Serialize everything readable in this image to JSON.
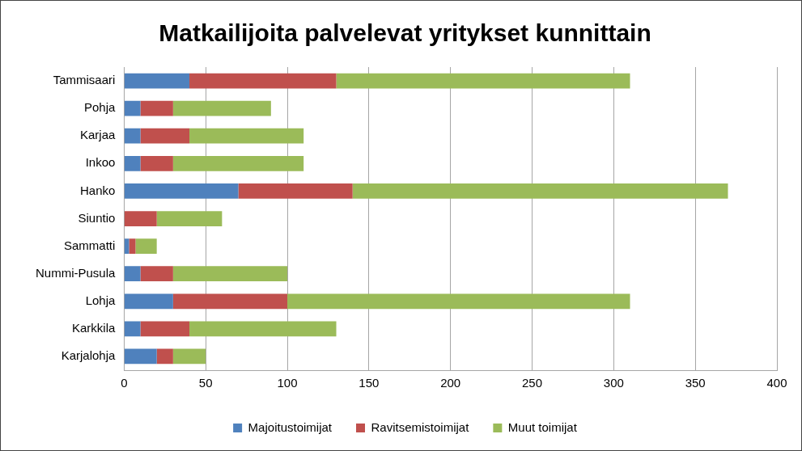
{
  "chart_data": {
    "type": "bar",
    "title": "Matkailijoita palvelevat yritykset kunnittain",
    "orientation": "horizontal",
    "stacked": true,
    "grid": true,
    "legend": "bottom",
    "categories": [
      "Tammisaari",
      "Pohja",
      "Karjaa",
      "Inkoo",
      "Hanko",
      "Siuntio",
      "Sammatti",
      "Nummi-Pusula",
      "Lohja",
      "Karkkila",
      "Karjalohja"
    ],
    "series": [
      {
        "name": "Majoitustoimijat",
        "color": "#4f81bd",
        "values": [
          40,
          10,
          10,
          10,
          70,
          0,
          3,
          10,
          30,
          10,
          20
        ]
      },
      {
        "name": "Ravitsemistoimijat",
        "color": "#c0504d",
        "values": [
          90,
          20,
          30,
          20,
          70,
          20,
          4,
          20,
          70,
          30,
          10
        ]
      },
      {
        "name": "Muut toimijat",
        "color": "#9bbb59",
        "values": [
          180,
          60,
          70,
          80,
          230,
          40,
          13,
          70,
          210,
          90,
          20
        ]
      }
    ],
    "xlim": [
      0,
      400
    ],
    "xticks": [
      0,
      50,
      100,
      150,
      200,
      250,
      300,
      350,
      400
    ]
  }
}
